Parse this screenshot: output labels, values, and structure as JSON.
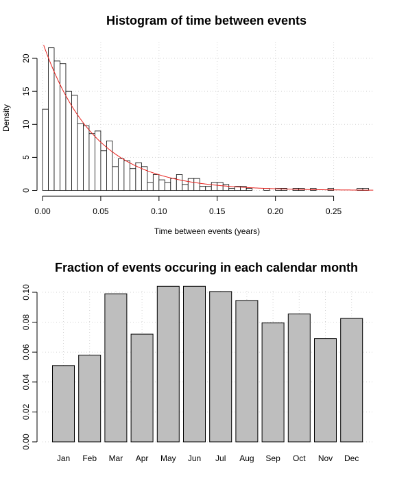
{
  "chart_data": [
    {
      "type": "bar",
      "subtype": "histogram",
      "title": "Histogram of time between events",
      "xlabel": "Time between events (years)",
      "ylabel": "Density",
      "xlim": [
        0,
        0.285
      ],
      "ylim": [
        0,
        22.5
      ],
      "grid": true,
      "grid_style": "dotted",
      "bin_width": 0.005,
      "bin_start": 0,
      "xticks": [
        "0.00",
        "0.05",
        "0.10",
        "0.15",
        "0.20",
        "0.25"
      ],
      "yticks": [
        "0",
        "5",
        "10",
        "15",
        "20"
      ],
      "density": [
        12.3,
        21.6,
        19.6,
        19.2,
        15.0,
        14.4,
        10.1,
        9.8,
        8.6,
        9.0,
        6.0,
        7.5,
        3.6,
        4.8,
        4.5,
        3.3,
        4.2,
        3.6,
        1.2,
        2.4,
        1.6,
        1.2,
        1.8,
        2.4,
        0.9,
        1.8,
        1.8,
        0.6,
        0.6,
        1.2,
        1.2,
        0.9,
        0.3,
        0.6,
        0.6,
        0.3,
        0,
        0,
        0.3,
        0,
        0.3,
        0.3,
        0,
        0.3,
        0.3,
        0,
        0.3,
        0,
        0,
        0.3,
        0,
        0,
        0,
        0,
        0.3,
        0.3
      ],
      "fitted_curve": {
        "type": "exponential",
        "rate": 22.5,
        "color": "#e8211d"
      },
      "bar_fill": "#ffffff",
      "bar_stroke": "#000000"
    },
    {
      "type": "bar",
      "title": "Fraction of events occuring in each calendar month",
      "xlabel": "",
      "ylabel": "",
      "categories": [
        "Jan",
        "Feb",
        "Mar",
        "Apr",
        "May",
        "Jun",
        "Jul",
        "Aug",
        "Sep",
        "Oct",
        "Nov",
        "Dec"
      ],
      "values": [
        0.051,
        0.058,
        0.099,
        0.072,
        0.104,
        0.104,
        0.1005,
        0.0945,
        0.0795,
        0.0855,
        0.069,
        0.0825
      ],
      "ylim": [
        0,
        0.1
      ],
      "yticks": [
        "0.00",
        "0.02",
        "0.04",
        "0.06",
        "0.08",
        "0.10"
      ],
      "grid": true,
      "grid_style": "dotted",
      "bar_fill": "#bebebe",
      "bar_stroke": "#000000"
    }
  ]
}
